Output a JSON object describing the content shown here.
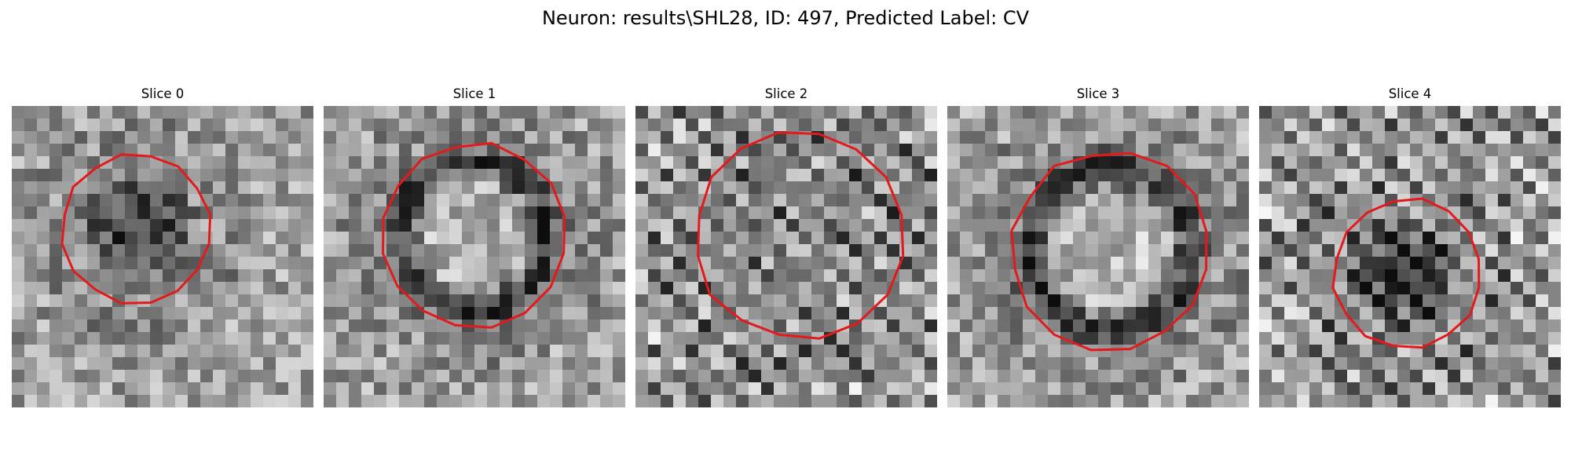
{
  "figure": {
    "title": "Neuron: results\\SHL28, ID: 497, Predicted Label: CV"
  },
  "colors": {
    "contour": "#e31a1c",
    "background": "#ffffff"
  },
  "panels": [
    {
      "title": "Slice 0",
      "interior_tone": "dark",
      "pattern": "noise"
    },
    {
      "title": "Slice 1",
      "interior_tone": "light-center-dark-rim",
      "pattern": "noise"
    },
    {
      "title": "Slice 2",
      "interior_tone": "mid",
      "pattern": "diagonal-checker"
    },
    {
      "title": "Slice 3",
      "interior_tone": "light-center-dark-rim",
      "pattern": "noise"
    },
    {
      "title": "Slice 4",
      "interior_tone": "dark",
      "pattern": "diagonal-checker"
    }
  ]
}
